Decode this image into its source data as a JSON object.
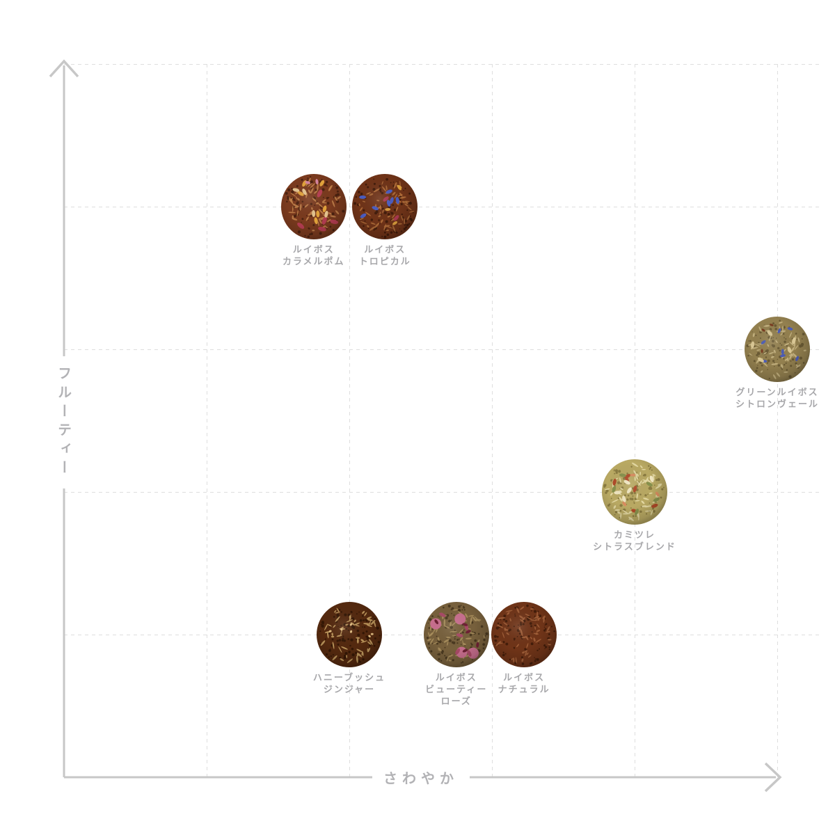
{
  "chart_data": {
    "type": "scatter",
    "title": "",
    "xlabel": "さわやか",
    "ylabel": "フルーティー",
    "x_range": [
      0,
      1
    ],
    "y_range": [
      0,
      1
    ],
    "grid_cells": 5,
    "grid_style": "dashed",
    "legend": "none",
    "axis_arrows": [
      "up",
      "right"
    ],
    "points": [
      {
        "id": "rooibos-caramel-pomme",
        "name": "ルイボス カラメルポム",
        "label_lines": [
          "ルイボス",
          "カラメルポム"
        ],
        "x": 0.35,
        "y": 0.8,
        "appearance": {
          "base": "#7a3a1e",
          "dark": "#4c2210",
          "light": "#c08049",
          "accents": [
            {
              "color": "#b63e52",
              "count": 5,
              "size": 6
            },
            {
              "color": "#e2a33b",
              "count": 6,
              "size": 5
            },
            {
              "color": "#e5c48f",
              "count": 4,
              "size": 5
            },
            {
              "color": "#d585a0",
              "count": 2,
              "size": 4
            }
          ]
        }
      },
      {
        "id": "rooibos-tropical",
        "name": "ルイボス トロピカル",
        "label_lines": [
          "ルイボス",
          "トロピカル"
        ],
        "x": 0.45,
        "y": 0.8,
        "appearance": {
          "base": "#6f3318",
          "dark": "#421c0b",
          "light": "#b06e3a",
          "accents": [
            {
              "color": "#4a5cc0",
              "count": 7,
              "size": 5
            },
            {
              "color": "#d89c3c",
              "count": 4,
              "size": 4
            },
            {
              "color": "#a83850",
              "count": 2,
              "size": 5
            }
          ]
        }
      },
      {
        "id": "green-rooibos-citron-vert",
        "name": "グリーンルイボス シトロンヴェール",
        "label_lines": [
          "グリーンルイボス",
          "シトロンヴェール"
        ],
        "x": 1.0,
        "y": 0.6,
        "appearance": {
          "base": "#93804f",
          "dark": "#6a5a34",
          "light": "#c8b583",
          "accents": [
            {
              "color": "#4c5cb4",
              "count": 7,
              "size": 4
            },
            {
              "color": "#d9c795",
              "count": 5,
              "size": 5
            },
            {
              "color": "#7a3b20",
              "count": 3,
              "size": 3
            }
          ]
        }
      },
      {
        "id": "chamomile-citrus-blend",
        "name": "カミツレ シトラスブレンド",
        "label_lines": [
          "カミツレ",
          "シトラスブレンド"
        ],
        "x": 0.8,
        "y": 0.4,
        "appearance": {
          "base": "#b9a963",
          "dark": "#8a7b41",
          "light": "#e7dba7",
          "accents": [
            {
              "color": "#b04a28",
              "count": 6,
              "size": 5
            },
            {
              "color": "#87914c",
              "count": 5,
              "size": 5
            },
            {
              "color": "#f0e6c1",
              "count": 5,
              "size": 5
            },
            {
              "color": "#d98c5f",
              "count": 3,
              "size": 4
            }
          ]
        }
      },
      {
        "id": "honeybush-ginger",
        "name": "ハニーブッシュ ジンジャー",
        "label_lines": [
          "ハニーブッシュ",
          "ジンジャー"
        ],
        "x": 0.4,
        "y": 0.2,
        "appearance": {
          "base": "#54290f",
          "dark": "#331705",
          "light": "#c29c60",
          "accents": [
            {
              "color": "#e0bc80",
              "count": 6,
              "size": 2
            }
          ]
        }
      },
      {
        "id": "rooibos-beauty-rose",
        "name": "ルイボス ビューティーローズ",
        "label_lines": [
          "ルイボス",
          "ビューティー",
          "ローズ"
        ],
        "x": 0.55,
        "y": 0.2,
        "appearance": {
          "base": "#77603c",
          "dark": "#4a3920",
          "light": "#a88f5d",
          "accents": [
            {
              "color": "#c86e8e",
              "count": 4,
              "size": 8
            },
            {
              "color": "#a84a66",
              "count": 5,
              "size": 5
            },
            {
              "color": "#6e2034",
              "count": 5,
              "size": 4
            }
          ]
        }
      },
      {
        "id": "rooibos-natural",
        "name": "ルイボス ナチュラル",
        "label_lines": [
          "ルイボス",
          "ナチュラル"
        ],
        "x": 0.645,
        "y": 0.2,
        "appearance": {
          "base": "#6f3418",
          "dark": "#431d0a",
          "light": "#a2613a",
          "accents": []
        }
      }
    ]
  },
  "style": {
    "axis_line_color": "#c7c7c7",
    "grid_color": "#dedede",
    "axis_label_color": "#b2b2b5",
    "tea_label_color": "#a7a7aa",
    "background": "#ffffff"
  }
}
